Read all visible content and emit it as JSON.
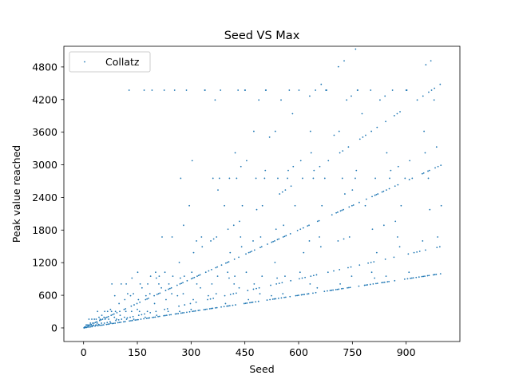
{
  "chart_data": {
    "type": "scatter",
    "title": "Seed VS Max",
    "xlabel": "Seed",
    "ylabel": "Peak value reached",
    "xlim": [
      -55,
      1050
    ],
    "ylim": [
      -250,
      5180
    ],
    "xticks": [
      0,
      150,
      300,
      450,
      600,
      750,
      900
    ],
    "yticks": [
      0,
      600,
      1200,
      1800,
      2400,
      3000,
      3600,
      4200,
      4800
    ],
    "grid": false,
    "legend_position": "upper left",
    "series": [
      {
        "name": "Collatz",
        "color": "#1f77b4",
        "marker": "point",
        "generator": "max value reached in Collatz sequence for each seed 1..1000"
      }
    ]
  }
}
